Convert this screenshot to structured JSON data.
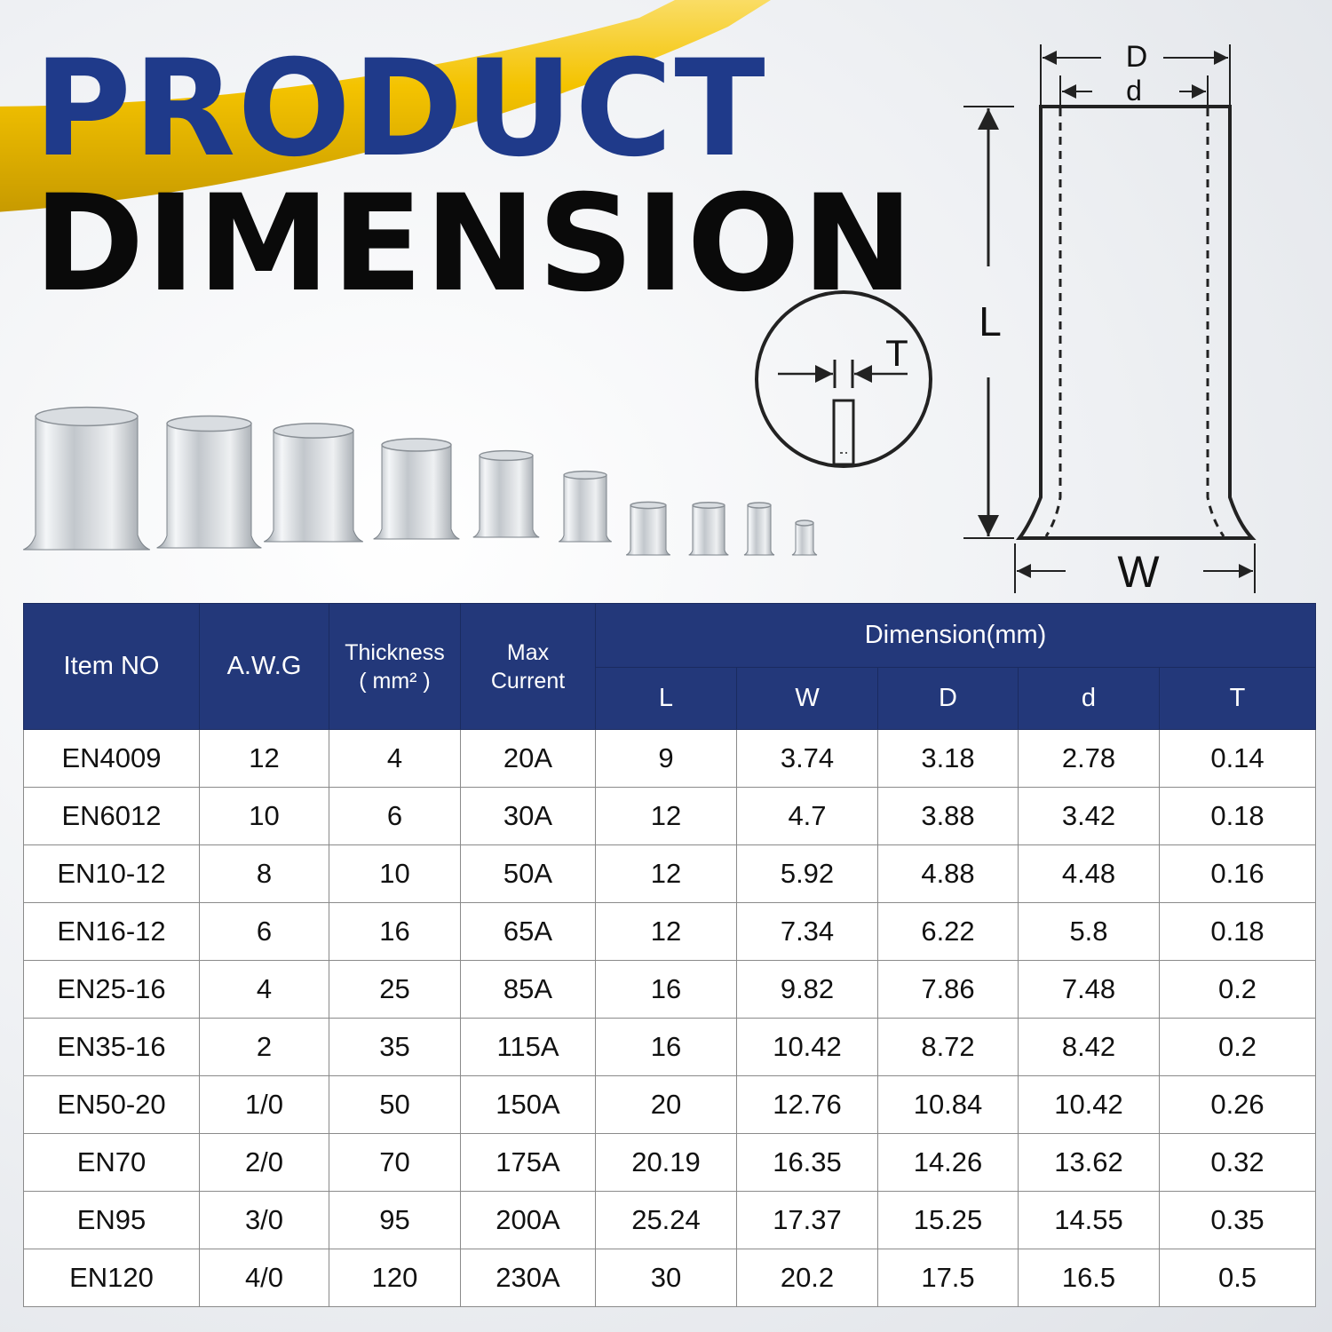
{
  "heading": {
    "line1": "PRODUCT",
    "line2": "DIMENSION"
  },
  "colors": {
    "heading_blue": "#1f3a8a",
    "table_header": "#23387a",
    "wire_yellow": "#f4c300"
  },
  "diagram": {
    "D": "D",
    "d": "d",
    "L": "L",
    "W": "W",
    "T": "T"
  },
  "table": {
    "headers": {
      "item": "Item NO",
      "awg": "A.W.G",
      "thickness": "Thickness\n( mm² )",
      "current": "Max\nCurrent",
      "dimension": "Dimension(mm)",
      "L": "L",
      "W": "W",
      "D": "D",
      "d": "d",
      "T": "T"
    },
    "rows": [
      [
        "EN4009",
        "12",
        "4",
        "20A",
        "9",
        "3.74",
        "3.18",
        "2.78",
        "0.14"
      ],
      [
        "EN6012",
        "10",
        "6",
        "30A",
        "12",
        "4.7",
        "3.88",
        "3.42",
        "0.18"
      ],
      [
        "EN10-12",
        "8",
        "10",
        "50A",
        "12",
        "5.92",
        "4.88",
        "4.48",
        "0.16"
      ],
      [
        "EN16-12",
        "6",
        "16",
        "65A",
        "12",
        "7.34",
        "6.22",
        "5.8",
        "0.18"
      ],
      [
        "EN25-16",
        "4",
        "25",
        "85A",
        "16",
        "9.82",
        "7.86",
        "7.48",
        "0.2"
      ],
      [
        "EN35-16",
        "2",
        "35",
        "115A",
        "16",
        "10.42",
        "8.72",
        "8.42",
        "0.2"
      ],
      [
        "EN50-20",
        "1/0",
        "50",
        "150A",
        "20",
        "12.76",
        "10.84",
        "10.42",
        "0.26"
      ],
      [
        "EN70",
        "2/0",
        "70",
        "175A",
        "20.19",
        "16.35",
        "14.26",
        "13.62",
        "0.32"
      ],
      [
        "EN95",
        "3/0",
        "95",
        "200A",
        "25.24",
        "17.37",
        "15.25",
        "14.55",
        "0.35"
      ],
      [
        "EN120",
        "4/0",
        "120",
        "230A",
        "30",
        "20.2",
        "17.5",
        "16.5",
        "0.5"
      ]
    ]
  }
}
